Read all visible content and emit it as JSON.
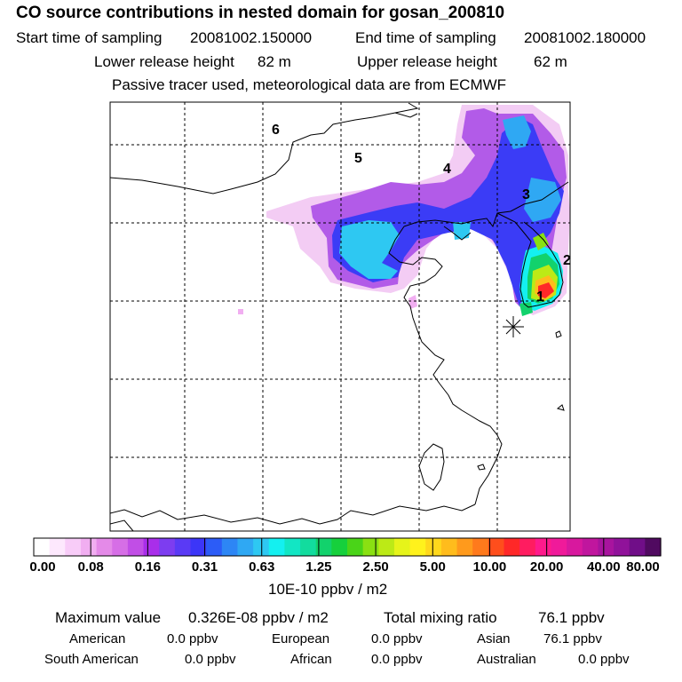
{
  "title": "CO  source contributions in nested domain for gosan_200810",
  "start_label": "Start time of sampling",
  "start_value": "20081002.150000",
  "end_label": "End time of sampling",
  "end_value": "20081002.180000",
  "lower_label": "Lower release height",
  "lower_value": "82 m",
  "upper_label": "Upper release height",
  "upper_value": "62 m",
  "note": "Passive tracer used, meteorological data are from ECMWF",
  "map": {
    "region_labels": [
      "6",
      "5",
      "4",
      "3",
      "2",
      "1"
    ],
    "receptor_marker": "asterisk"
  },
  "colorbar": {
    "colors": [
      "#ffffff",
      "#fde8fd",
      "#f8ccf8",
      "#f1aef1",
      "#e48ae8",
      "#d66ee6",
      "#c14ee6",
      "#a92eea",
      "#7d3df0",
      "#5a3af5",
      "#3c36f8",
      "#2c5cf7",
      "#2d86f5",
      "#2fa8f3",
      "#2ec8f2",
      "#14f0f0",
      "#12e6c4",
      "#12dc9e",
      "#12d26c",
      "#16d03c",
      "#4ad418",
      "#8ae012",
      "#bcea16",
      "#e6f41a",
      "#fff21c",
      "#ffd81c",
      "#ffbc1c",
      "#ff9a1c",
      "#ff7a1c",
      "#ff4e1c",
      "#ff2828",
      "#ff1c60",
      "#ff1a8c",
      "#f01a9a",
      "#d8189e",
      "#c0169e",
      "#a8149e",
      "#90129a",
      "#700e88",
      "#500a60"
    ],
    "ticks": [
      "0.00",
      "0.08",
      "0.16",
      "0.31",
      "0.63",
      "1.25",
      "2.50",
      "5.00",
      "10.00",
      "20.00",
      "40.00",
      "80.00"
    ],
    "unit": "10E-10 ppbv / m2"
  },
  "stats": {
    "max_label": "Maximum value",
    "max_value": "0.326E-08 ppbv / m2",
    "total_label": "Total mixing ratio",
    "total_value": "76.1 ppbv",
    "american_label": "American",
    "american_value": "0.0 ppbv",
    "european_label": "European",
    "european_value": "0.0 ppbv",
    "asian_label": "Asian",
    "asian_value": "76.1 ppbv",
    "south_american_label": "South American",
    "south_american_value": "0.0 ppbv",
    "african_label": "African",
    "african_value": "0.0 ppbv",
    "australian_label": "Australian",
    "australian_value": "0.0 ppbv"
  }
}
